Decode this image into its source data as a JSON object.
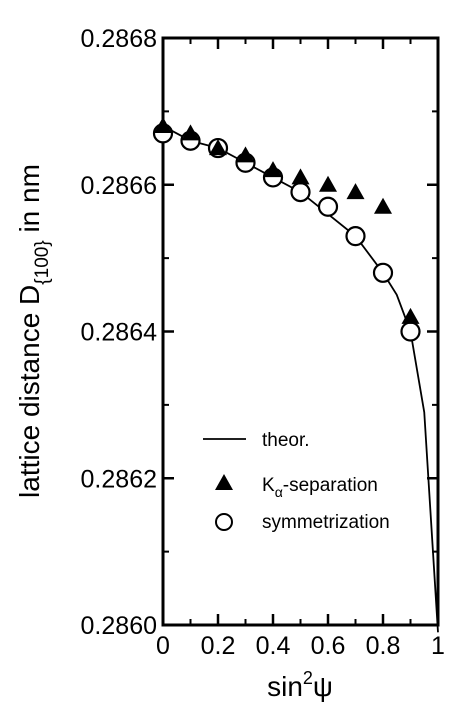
{
  "chart_data": {
    "type": "scatter",
    "title": "",
    "xlabel_parts": {
      "base": "sin",
      "sup": "2",
      "tail": "ψ"
    },
    "ylabel_parts": {
      "main": "lattice distance D",
      "sub": "{100}",
      "tail": " in nm"
    },
    "xlim": [
      0,
      1
    ],
    "ylim": [
      0.286,
      0.2868
    ],
    "xticks": [
      0,
      0.2,
      0.4,
      0.6,
      0.8,
      1
    ],
    "xtick_labels": [
      "0",
      "0.2",
      "0.4",
      "0.6",
      "0.8",
      "1"
    ],
    "yticks": [
      0.286,
      0.2862,
      0.2864,
      0.2866,
      0.2868
    ],
    "ytick_labels": [
      "0.2860",
      "0.2862",
      "0.2864",
      "0.2866",
      "0.2868"
    ],
    "grid": false,
    "legend_position": "lower-left",
    "series": [
      {
        "name": "theor.",
        "marker": "line",
        "x": [
          0,
          0.1,
          0.2,
          0.3,
          0.4,
          0.5,
          0.6,
          0.7,
          0.8,
          0.85,
          0.9,
          0.95,
          1.0
        ],
        "y": [
          0.28668,
          0.28666,
          0.28665,
          0.28663,
          0.28661,
          0.28659,
          0.28656,
          0.28653,
          0.28648,
          0.28645,
          0.2864,
          0.28629,
          0.28599
        ]
      },
      {
        "name": "K",
        "name_sub": "α",
        "name_tail": "-separation",
        "marker": "triangle",
        "x": [
          0,
          0.1,
          0.2,
          0.3,
          0.4,
          0.5,
          0.6,
          0.7,
          0.8,
          0.9
        ],
        "y": [
          0.28668,
          0.28667,
          0.28665,
          0.28664,
          0.28662,
          0.28661,
          0.2866,
          0.28659,
          0.28657,
          0.28642
        ]
      },
      {
        "name": "symmetrization",
        "marker": "circle",
        "x": [
          0,
          0.1,
          0.2,
          0.3,
          0.4,
          0.5,
          0.6,
          0.7,
          0.8,
          0.9
        ],
        "y": [
          0.28667,
          0.28666,
          0.28665,
          0.28663,
          0.28661,
          0.28659,
          0.28657,
          0.28653,
          0.28648,
          0.2864
        ]
      }
    ]
  }
}
